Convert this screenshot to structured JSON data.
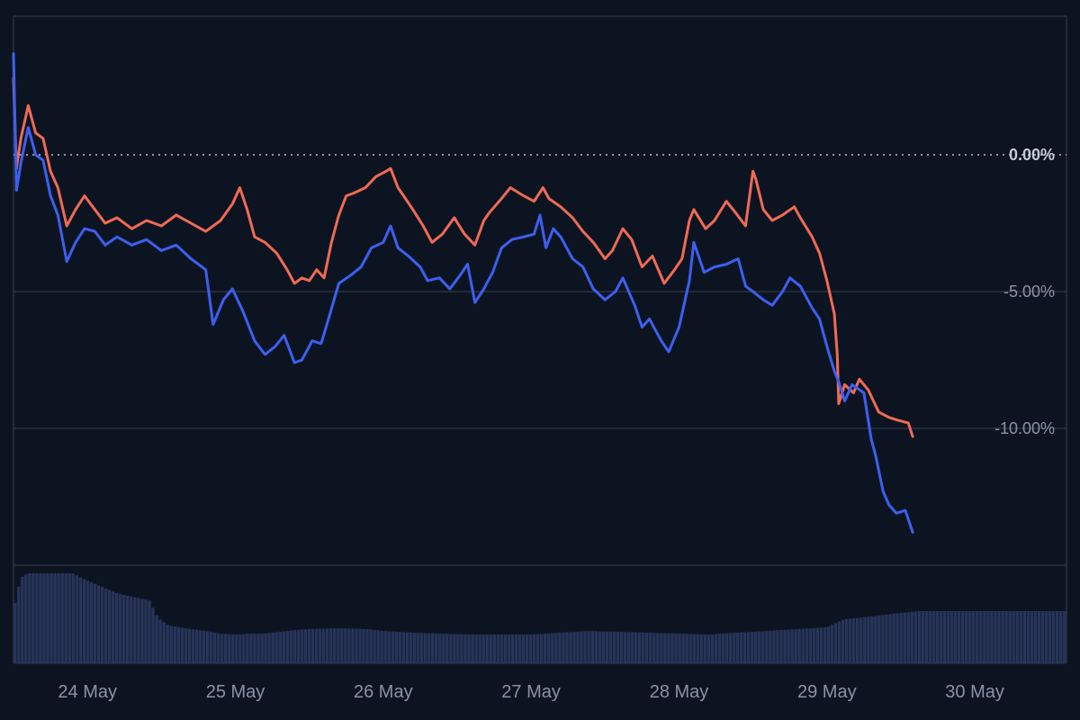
{
  "chart_data": {
    "type": "line",
    "title": "",
    "xlabel": "",
    "ylabel": "",
    "x_tick_labels": [
      "24 May",
      "25 May",
      "26 May",
      "27 May",
      "28 May",
      "29 May",
      "30 May"
    ],
    "y_tick_labels": [
      "0.00%",
      "-5.00%",
      "-10.00%"
    ],
    "y_ticks": [
      0,
      -5,
      -10
    ],
    "ylim": [
      -15,
      5
    ],
    "xlim_days": [
      23.5,
      30.62
    ],
    "grid": true,
    "baseline_value": 0,
    "baseline_label": "0.00%",
    "legend": "none",
    "colors": {
      "background": "#0d1421",
      "grid": "#2a3140",
      "series_red": "#f06a55",
      "series_blue": "#3d5ff0",
      "volume": "#273459",
      "label": "#8a92a6",
      "baseline_label": "#c6cbd6"
    },
    "series": [
      {
        "color": "#f06a55",
        "points": [
          [
            23.5,
            2.8
          ],
          [
            23.52,
            -0.5
          ],
          [
            23.55,
            0.6
          ],
          [
            23.6,
            1.8
          ],
          [
            23.65,
            0.8
          ],
          [
            23.7,
            0.6
          ],
          [
            23.75,
            -0.6
          ],
          [
            23.8,
            -1.2
          ],
          [
            23.86,
            -2.6
          ],
          [
            23.92,
            -2.0
          ],
          [
            23.98,
            -1.5
          ],
          [
            24.05,
            -2.0
          ],
          [
            24.12,
            -2.5
          ],
          [
            24.2,
            -2.3
          ],
          [
            24.3,
            -2.7
          ],
          [
            24.4,
            -2.4
          ],
          [
            24.5,
            -2.6
          ],
          [
            24.6,
            -2.2
          ],
          [
            24.7,
            -2.5
          ],
          [
            24.8,
            -2.8
          ],
          [
            24.9,
            -2.4
          ],
          [
            24.98,
            -1.8
          ],
          [
            25.03,
            -1.2
          ],
          [
            25.08,
            -2.0
          ],
          [
            25.13,
            -3.0
          ],
          [
            25.2,
            -3.2
          ],
          [
            25.28,
            -3.6
          ],
          [
            25.35,
            -4.2
          ],
          [
            25.4,
            -4.7
          ],
          [
            25.45,
            -4.5
          ],
          [
            25.5,
            -4.6
          ],
          [
            25.55,
            -4.2
          ],
          [
            25.6,
            -4.5
          ],
          [
            25.65,
            -3.2
          ],
          [
            25.7,
            -2.2
          ],
          [
            25.75,
            -1.5
          ],
          [
            25.8,
            -1.4
          ],
          [
            25.88,
            -1.2
          ],
          [
            25.95,
            -0.8
          ],
          [
            26.02,
            -0.6
          ],
          [
            26.05,
            -0.5
          ],
          [
            26.1,
            -1.2
          ],
          [
            26.15,
            -1.6
          ],
          [
            26.2,
            -2.0
          ],
          [
            26.27,
            -2.6
          ],
          [
            26.33,
            -3.2
          ],
          [
            26.4,
            -2.9
          ],
          [
            26.48,
            -2.3
          ],
          [
            26.55,
            -2.9
          ],
          [
            26.62,
            -3.3
          ],
          [
            26.68,
            -2.4
          ],
          [
            26.72,
            -2.1
          ],
          [
            26.8,
            -1.6
          ],
          [
            26.86,
            -1.2
          ],
          [
            26.95,
            -1.5
          ],
          [
            27.02,
            -1.7
          ],
          [
            27.08,
            -1.2
          ],
          [
            27.12,
            -1.6
          ],
          [
            27.2,
            -1.9
          ],
          [
            27.28,
            -2.3
          ],
          [
            27.35,
            -2.8
          ],
          [
            27.42,
            -3.2
          ],
          [
            27.5,
            -3.8
          ],
          [
            27.55,
            -3.5
          ],
          [
            27.62,
            -2.7
          ],
          [
            27.68,
            -3.1
          ],
          [
            27.75,
            -4.1
          ],
          [
            27.82,
            -3.7
          ],
          [
            27.9,
            -4.7
          ],
          [
            27.97,
            -4.2
          ],
          [
            28.02,
            -3.8
          ],
          [
            28.07,
            -2.4
          ],
          [
            28.1,
            -2.0
          ],
          [
            28.18,
            -2.7
          ],
          [
            28.24,
            -2.4
          ],
          [
            28.32,
            -1.7
          ],
          [
            28.38,
            -2.1
          ],
          [
            28.45,
            -2.6
          ],
          [
            28.5,
            -0.6
          ],
          [
            28.52,
            -0.9
          ],
          [
            28.57,
            -2.0
          ],
          [
            28.63,
            -2.4
          ],
          [
            28.7,
            -2.2
          ],
          [
            28.78,
            -1.9
          ],
          [
            28.82,
            -2.3
          ],
          [
            28.9,
            -3.0
          ],
          [
            28.95,
            -3.6
          ],
          [
            29.0,
            -4.6
          ],
          [
            29.05,
            -5.8
          ],
          [
            29.07,
            -7.3
          ],
          [
            29.08,
            -9.1
          ],
          [
            29.12,
            -8.4
          ],
          [
            29.18,
            -8.7
          ],
          [
            29.22,
            -8.2
          ],
          [
            29.28,
            -8.6
          ],
          [
            29.35,
            -9.4
          ],
          [
            29.42,
            -9.6
          ],
          [
            29.48,
            -9.7
          ],
          [
            29.55,
            -9.8
          ],
          [
            29.58,
            -10.3
          ]
        ]
      },
      {
        "color": "#3d5ff0",
        "points": [
          [
            23.5,
            3.7
          ],
          [
            23.52,
            -1.3
          ],
          [
            23.55,
            -0.3
          ],
          [
            23.6,
            1.0
          ],
          [
            23.65,
            0.0
          ],
          [
            23.7,
            -0.2
          ],
          [
            23.75,
            -1.5
          ],
          [
            23.8,
            -2.2
          ],
          [
            23.86,
            -3.9
          ],
          [
            23.92,
            -3.2
          ],
          [
            23.98,
            -2.7
          ],
          [
            24.05,
            -2.8
          ],
          [
            24.12,
            -3.3
          ],
          [
            24.2,
            -3.0
          ],
          [
            24.3,
            -3.3
          ],
          [
            24.4,
            -3.1
          ],
          [
            24.5,
            -3.5
          ],
          [
            24.6,
            -3.3
          ],
          [
            24.7,
            -3.8
          ],
          [
            24.8,
            -4.2
          ],
          [
            24.85,
            -6.2
          ],
          [
            24.92,
            -5.3
          ],
          [
            24.98,
            -4.9
          ],
          [
            25.05,
            -5.7
          ],
          [
            25.13,
            -6.8
          ],
          [
            25.2,
            -7.3
          ],
          [
            25.27,
            -7.0
          ],
          [
            25.33,
            -6.6
          ],
          [
            25.4,
            -7.6
          ],
          [
            25.45,
            -7.5
          ],
          [
            25.52,
            -6.8
          ],
          [
            25.58,
            -6.9
          ],
          [
            25.63,
            -6.0
          ],
          [
            25.7,
            -4.7
          ],
          [
            25.78,
            -4.4
          ],
          [
            25.85,
            -4.1
          ],
          [
            25.92,
            -3.4
          ],
          [
            26.0,
            -3.2
          ],
          [
            26.05,
            -2.6
          ],
          [
            26.1,
            -3.4
          ],
          [
            26.17,
            -3.7
          ],
          [
            26.25,
            -4.1
          ],
          [
            26.3,
            -4.6
          ],
          [
            26.38,
            -4.5
          ],
          [
            26.45,
            -4.9
          ],
          [
            26.52,
            -4.4
          ],
          [
            26.57,
            -4.0
          ],
          [
            26.62,
            -5.4
          ],
          [
            26.68,
            -4.9
          ],
          [
            26.74,
            -4.3
          ],
          [
            26.8,
            -3.4
          ],
          [
            26.87,
            -3.1
          ],
          [
            26.95,
            -3.0
          ],
          [
            27.02,
            -2.9
          ],
          [
            27.06,
            -2.2
          ],
          [
            27.1,
            -3.4
          ],
          [
            27.15,
            -2.7
          ],
          [
            27.2,
            -3.0
          ],
          [
            27.28,
            -3.8
          ],
          [
            27.35,
            -4.1
          ],
          [
            27.42,
            -4.9
          ],
          [
            27.5,
            -5.3
          ],
          [
            27.57,
            -5.0
          ],
          [
            27.62,
            -4.5
          ],
          [
            27.7,
            -5.5
          ],
          [
            27.75,
            -6.3
          ],
          [
            27.8,
            -6.0
          ],
          [
            27.88,
            -6.8
          ],
          [
            27.93,
            -7.2
          ],
          [
            28.0,
            -6.3
          ],
          [
            28.07,
            -4.6
          ],
          [
            28.1,
            -3.2
          ],
          [
            28.17,
            -4.3
          ],
          [
            28.24,
            -4.1
          ],
          [
            28.32,
            -4.0
          ],
          [
            28.4,
            -3.8
          ],
          [
            28.45,
            -4.8
          ],
          [
            28.5,
            -5.0
          ],
          [
            28.57,
            -5.3
          ],
          [
            28.63,
            -5.5
          ],
          [
            28.7,
            -5.0
          ],
          [
            28.75,
            -4.5
          ],
          [
            28.82,
            -4.8
          ],
          [
            28.9,
            -5.6
          ],
          [
            28.95,
            -6.0
          ],
          [
            29.0,
            -7.0
          ],
          [
            29.05,
            -7.9
          ],
          [
            29.08,
            -8.3
          ],
          [
            29.12,
            -9.0
          ],
          [
            29.17,
            -8.4
          ],
          [
            29.25,
            -8.7
          ],
          [
            29.3,
            -10.4
          ],
          [
            29.33,
            -11.0
          ],
          [
            29.38,
            -12.3
          ],
          [
            29.42,
            -12.8
          ],
          [
            29.47,
            -13.1
          ],
          [
            29.53,
            -13.0
          ],
          [
            29.58,
            -13.8
          ]
        ]
      }
    ],
    "volume": [
      [
        23.5,
        58
      ],
      [
        23.55,
        95
      ],
      [
        23.6,
        100
      ],
      [
        23.75,
        100
      ],
      [
        23.9,
        100
      ],
      [
        24.0,
        92
      ],
      [
        24.1,
        85
      ],
      [
        24.2,
        78
      ],
      [
        24.3,
        74
      ],
      [
        24.42,
        70
      ],
      [
        24.48,
        50
      ],
      [
        24.55,
        42
      ],
      [
        24.7,
        38
      ],
      [
        24.8,
        36
      ],
      [
        24.9,
        33
      ],
      [
        25.0,
        32
      ],
      [
        25.1,
        33
      ],
      [
        25.2,
        33
      ],
      [
        25.3,
        35
      ],
      [
        25.4,
        37
      ],
      [
        25.5,
        38
      ],
      [
        25.7,
        39
      ],
      [
        25.9,
        38
      ],
      [
        26.0,
        36
      ],
      [
        26.2,
        34
      ],
      [
        26.4,
        33
      ],
      [
        26.6,
        32
      ],
      [
        26.8,
        32
      ],
      [
        27.0,
        32
      ],
      [
        27.2,
        34
      ],
      [
        27.4,
        36
      ],
      [
        27.6,
        35
      ],
      [
        27.8,
        34
      ],
      [
        28.0,
        33
      ],
      [
        28.2,
        32
      ],
      [
        28.4,
        34
      ],
      [
        28.6,
        36
      ],
      [
        28.8,
        38
      ],
      [
        29.0,
        40
      ],
      [
        29.12,
        49
      ],
      [
        29.2,
        50
      ],
      [
        29.35,
        53
      ],
      [
        29.5,
        56
      ],
      [
        29.62,
        58
      ]
    ]
  }
}
